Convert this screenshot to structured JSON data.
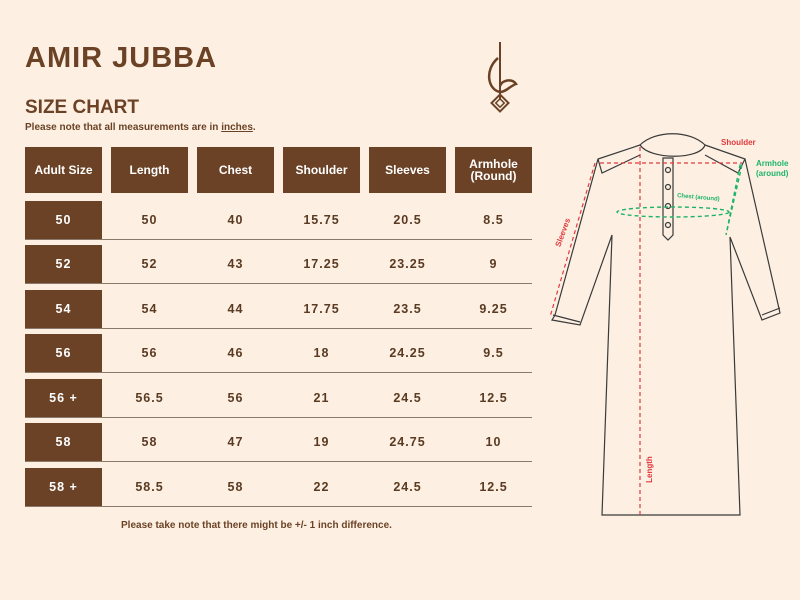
{
  "title": "AMIR JUBBA",
  "subtitle": "SIZE CHART",
  "note_prefix": "Please note that all measurements are in ",
  "note_unit": "inches",
  "note_suffix": ".",
  "columns": [
    "Adult Size",
    "Length",
    "Chest",
    "Shoulder",
    "Sleeves",
    "Armhole\n(Round)"
  ],
  "rows": [
    [
      "50",
      "50",
      "40",
      "15.75",
      "20.5",
      "8.5"
    ],
    [
      "52",
      "52",
      "43",
      "17.25",
      "23.25",
      "9"
    ],
    [
      "54",
      "54",
      "44",
      "17.75",
      "23.5",
      "9.25"
    ],
    [
      "56",
      "56",
      "46",
      "18",
      "24.25",
      "9.5"
    ],
    [
      "56 +",
      "56.5",
      "56",
      "21",
      "24.5",
      "12.5"
    ],
    [
      "58",
      "58",
      "47",
      "19",
      "24.75",
      "10"
    ],
    [
      "58 +",
      "58.5",
      "58",
      "22",
      "24.5",
      "12.5"
    ]
  ],
  "footnote": "Please take note that there might be +/- 1 inch difference.",
  "diagram": {
    "shoulder": "Shoulder",
    "armhole": "Armhole\n(around)",
    "chest": "Chest (around)",
    "sleeves": "Sleeves",
    "length": "Length"
  },
  "colors": {
    "brand": "#6b4226",
    "background": "#fdf0e2",
    "measure_red": "#e0393e",
    "measure_green": "#1db36a"
  }
}
